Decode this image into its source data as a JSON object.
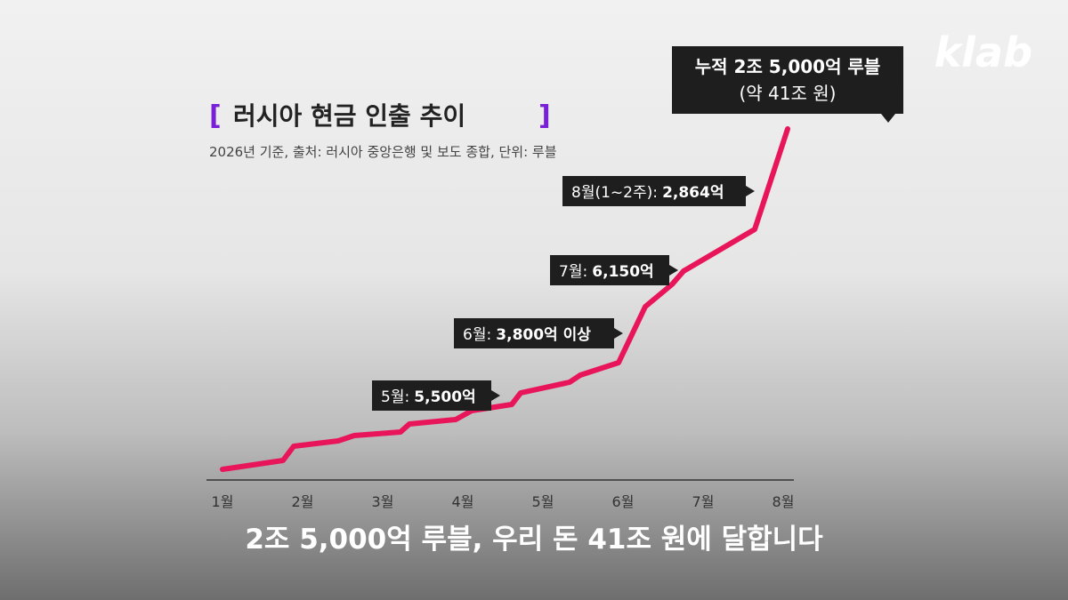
{
  "logo": "klab",
  "title": "러시아 현금 인출 추이",
  "subtitle": "2026년 기준, 출처: 러시아 중앙은행 및 보도 종합, 단위: 루블",
  "months": [
    "1월",
    "2월",
    "3월",
    "4월",
    "5월",
    "6월",
    "7월",
    "8월"
  ],
  "callouts": [
    {
      "label": "5월:",
      "value": "5,500억"
    },
    {
      "label": "6월:",
      "value": "3,800억 이상"
    },
    {
      "label": "7월:",
      "value": "6,150억"
    },
    {
      "label": "8월(1~2주):",
      "value": "2,864억"
    }
  ],
  "total": {
    "line1": "누적 2조 5,000억 루블",
    "line2": "(약 41조 원)"
  },
  "caption": "2조 5,000억 루블, 우리 돈 41조 원에 달합니다"
}
